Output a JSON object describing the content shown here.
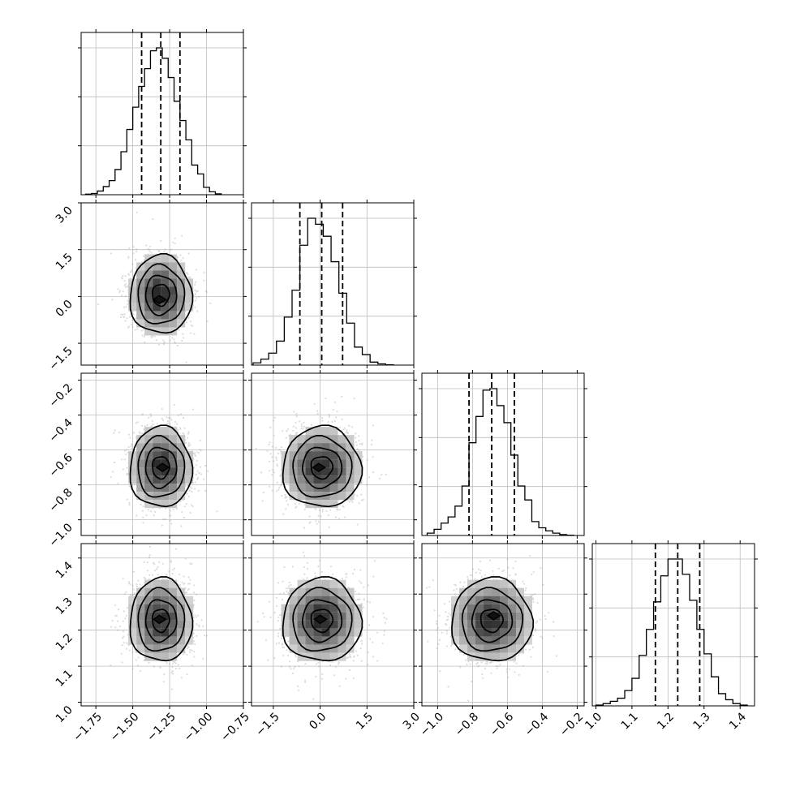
{
  "chart_data": {
    "type": "corner",
    "parameters": 4,
    "grid": true,
    "quantile_lines": "dashed",
    "variables": [
      {
        "range": [
          -1.85,
          -0.75
        ],
        "ticks": [
          -1.75,
          -1.5,
          -1.25,
          -1.0,
          -0.75
        ],
        "tick_labels": [
          "−1.75",
          "−1.50",
          "−1.25",
          "−1.00",
          "−0.75"
        ],
        "quantiles": [
          -1.44,
          -1.31,
          -1.18
        ],
        "hist": {
          "edges": [
            -1.82,
            -1.78,
            -1.74,
            -1.7,
            -1.66,
            -1.62,
            -1.58,
            -1.54,
            -1.5,
            -1.46,
            -1.42,
            -1.38,
            -1.34,
            -1.3,
            -1.26,
            -1.22,
            -1.18,
            -1.14,
            -1.1,
            -1.06,
            -1.02,
            -0.98,
            -0.94,
            -0.9
          ],
          "values": [
            0.4,
            0.8,
            2.5,
            5.5,
            9.5,
            17,
            29,
            44,
            59,
            73,
            85,
            97,
            99,
            92,
            79,
            63,
            50,
            37,
            20,
            14,
            5,
            2,
            0.6
          ]
        }
      },
      {
        "range": [
          -2.2,
          3.0
        ],
        "ticks": [
          -1.5,
          0.0,
          1.5,
          3.0
        ],
        "tick_labels": [
          "−1.5",
          "0.0",
          "1.5",
          "3.0"
        ],
        "quantiles": [
          -0.65,
          0.05,
          0.72
        ],
        "hist": {
          "edges": [
            -2.15,
            -1.9,
            -1.65,
            -1.4,
            -1.15,
            -0.9,
            -0.65,
            -0.4,
            -0.15,
            0.1,
            0.35,
            0.6,
            0.85,
            1.1,
            1.35,
            1.6,
            1.85,
            2.1,
            2.35
          ],
          "values": [
            1.5,
            4,
            8,
            16,
            32,
            50,
            80,
            98,
            94,
            86,
            69,
            48,
            28,
            12,
            7,
            2,
            0.8,
            0.2
          ]
        }
      },
      {
        "range": [
          -1.09,
          -0.16
        ],
        "ticks": [
          -1.0,
          -0.8,
          -0.6,
          -0.4,
          -0.2
        ],
        "tick_labels": [
          "−1.0",
          "−0.8",
          "−0.6",
          "−0.4",
          "−0.2"
        ],
        "quantiles": [
          -0.82,
          -0.69,
          -0.56
        ],
        "hist": {
          "edges": [
            -1.06,
            -1.02,
            -0.98,
            -0.94,
            -0.9,
            -0.86,
            -0.82,
            -0.78,
            -0.74,
            -0.7,
            -0.66,
            -0.62,
            -0.58,
            -0.54,
            -0.5,
            -0.46,
            -0.42,
            -0.38,
            -0.34,
            -0.3,
            -0.26,
            -0.22
          ],
          "values": [
            1.5,
            4,
            8,
            12,
            19,
            32,
            60,
            77,
            94,
            95,
            84,
            73,
            52,
            32,
            23,
            9,
            5,
            3,
            1.5,
            0.6,
            0.2
          ]
        }
      },
      {
        "range": [
          0.99,
          1.44
        ],
        "ticks": [
          1.0,
          1.1,
          1.2,
          1.3,
          1.4
        ],
        "tick_labels": [
          "1.0",
          "1.1",
          "1.2",
          "1.3",
          "1.4"
        ],
        "quantiles": [
          1.165,
          1.227,
          1.288
        ],
        "hist": {
          "edges": [
            1.0,
            1.02,
            1.04,
            1.06,
            1.08,
            1.1,
            1.12,
            1.14,
            1.16,
            1.18,
            1.2,
            1.22,
            1.24,
            1.26,
            1.28,
            1.3,
            1.32,
            1.34,
            1.36,
            1.38,
            1.4,
            1.42
          ],
          "values": [
            0.5,
            1.5,
            3,
            5,
            10,
            18,
            33,
            50,
            68,
            85,
            96,
            96,
            86,
            69,
            50,
            34,
            19,
            8,
            4,
            1.5,
            0.5
          ]
        }
      }
    ],
    "pairs": [
      {
        "row": 1,
        "col": 0,
        "center": [
          -1.31,
          0.05
        ],
        "spread": [
          0.1,
          0.6
        ],
        "peak": [
          -1.32,
          -0.1
        ]
      },
      {
        "row": 2,
        "col": 0,
        "center": [
          -1.31,
          -0.7
        ],
        "spread": [
          0.1,
          0.11
        ],
        "peak": [
          -1.3,
          -0.7
        ]
      },
      {
        "row": 2,
        "col": 1,
        "center": [
          0.05,
          -0.7
        ],
        "spread": [
          0.6,
          0.11
        ],
        "peak": [
          -0.05,
          -0.7
        ]
      },
      {
        "row": 3,
        "col": 0,
        "center": [
          -1.31,
          1.227
        ],
        "spread": [
          0.1,
          0.055
        ],
        "peak": [
          -1.32,
          1.23
        ]
      },
      {
        "row": 3,
        "col": 1,
        "center": [
          0.05,
          1.227
        ],
        "spread": [
          0.6,
          0.055
        ],
        "peak": [
          0.0,
          1.23
        ]
      },
      {
        "row": 3,
        "col": 2,
        "center": [
          -0.69,
          1.227
        ],
        "spread": [
          0.11,
          0.055
        ],
        "peak": [
          -0.68,
          1.24
        ]
      }
    ]
  }
}
